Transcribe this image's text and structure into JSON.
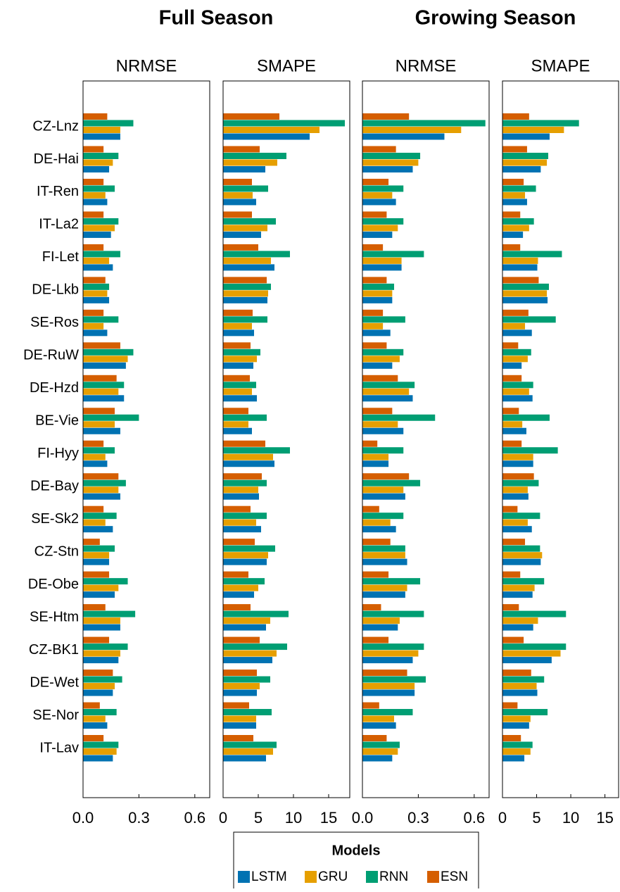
{
  "groups": [
    "Full Season",
    "Growing Season"
  ],
  "categories": [
    "CZ-Lnz",
    "DE-Hai",
    "IT-Ren",
    "IT-La2",
    "FI-Let",
    "DE-Lkb",
    "SE-Ros",
    "DE-RuW",
    "DE-Hzd",
    "BE-Vie",
    "FI-Hyy",
    "DE-Bay",
    "SE-Sk2",
    "CZ-Stn",
    "DE-Obe",
    "SE-Htm",
    "CZ-BK1",
    "DE-Wet",
    "SE-Nor",
    "IT-Lav"
  ],
  "legend": {
    "title": "Models",
    "names": [
      "LSTM",
      "GRU",
      "RNN",
      "ESN"
    ],
    "colors": [
      "#0072b2",
      "#e69f00",
      "#009e73",
      "#d55e00"
    ]
  },
  "chart_data": [
    {
      "type": "bar",
      "orientation": "horizontal",
      "title": "NRMSE",
      "xlim": [
        0,
        0.68
      ],
      "xticks": [
        {
          "value": 0,
          "label": "0.0"
        },
        {
          "value": 0.3,
          "label": "0.3"
        },
        {
          "value": 0.6,
          "label": "0.6"
        }
      ],
      "series": [
        {
          "values": [
            0.2,
            0.14,
            0.13,
            0.15,
            0.16,
            0.14,
            0.13,
            0.23,
            0.22,
            0.2,
            0.13,
            0.2,
            0.16,
            0.14,
            0.17,
            0.2,
            0.19,
            0.16,
            0.13,
            0.16
          ]
        },
        {
          "values": [
            0.2,
            0.16,
            0.12,
            0.17,
            0.14,
            0.13,
            0.11,
            0.24,
            0.19,
            0.17,
            0.12,
            0.19,
            0.12,
            0.14,
            0.19,
            0.2,
            0.2,
            0.17,
            0.12,
            0.18
          ]
        },
        {
          "values": [
            0.27,
            0.19,
            0.17,
            0.19,
            0.2,
            0.14,
            0.19,
            0.27,
            0.22,
            0.3,
            0.17,
            0.23,
            0.18,
            0.17,
            0.24,
            0.28,
            0.24,
            0.21,
            0.18,
            0.19
          ]
        },
        {
          "values": [
            0.13,
            0.11,
            0.11,
            0.11,
            0.11,
            0.12,
            0.11,
            0.2,
            0.18,
            0.17,
            0.11,
            0.19,
            0.11,
            0.09,
            0.14,
            0.12,
            0.14,
            0.16,
            0.09,
            0.11
          ]
        }
      ]
    },
    {
      "type": "bar",
      "orientation": "horizontal",
      "title": "SMAPE",
      "xlim": [
        0,
        18
      ],
      "xticks": [
        0,
        5,
        10,
        15
      ],
      "series": [
        {
          "values": [
            12.3,
            6.0,
            4.7,
            5.4,
            7.3,
            6.3,
            4.4,
            4.3,
            4.8,
            4.1,
            7.3,
            5.1,
            5.4,
            6.2,
            4.4,
            6.1,
            7.0,
            4.8,
            4.7,
            6.1
          ]
        },
        {
          "values": [
            13.7,
            7.7,
            4.2,
            6.3,
            6.8,
            6.4,
            4.1,
            4.8,
            4.1,
            3.6,
            7.1,
            5.0,
            4.7,
            6.4,
            5.0,
            6.7,
            7.6,
            5.2,
            4.7,
            7.1
          ]
        },
        {
          "values": [
            17.3,
            9.0,
            6.4,
            7.5,
            9.5,
            6.8,
            6.3,
            5.3,
            4.7,
            6.2,
            9.5,
            6.2,
            6.2,
            7.4,
            5.9,
            9.3,
            9.1,
            6.7,
            6.9,
            7.6
          ]
        },
        {
          "values": [
            8.0,
            5.2,
            4.1,
            4.1,
            5.0,
            6.2,
            4.2,
            3.9,
            3.8,
            3.6,
            6.0,
            5.5,
            3.9,
            4.5,
            3.6,
            3.9,
            5.2,
            4.8,
            3.7,
            4.3
          ]
        }
      ]
    },
    {
      "type": "bar",
      "orientation": "horizontal",
      "title": "NRMSE",
      "xlim": [
        0,
        0.68
      ],
      "xticks": [
        {
          "value": 0,
          "label": "0.0"
        },
        {
          "value": 0.3,
          "label": "0.3"
        },
        {
          "value": 0.6,
          "label": "0.6"
        }
      ],
      "series": [
        {
          "values": [
            0.44,
            0.27,
            0.18,
            0.16,
            0.21,
            0.16,
            0.15,
            0.16,
            0.27,
            0.22,
            0.14,
            0.23,
            0.18,
            0.24,
            0.23,
            0.19,
            0.27,
            0.28,
            0.18,
            0.16
          ]
        },
        {
          "values": [
            0.53,
            0.3,
            0.16,
            0.19,
            0.21,
            0.16,
            0.11,
            0.2,
            0.25,
            0.19,
            0.14,
            0.22,
            0.15,
            0.23,
            0.24,
            0.2,
            0.3,
            0.28,
            0.17,
            0.19
          ]
        },
        {
          "values": [
            0.66,
            0.31,
            0.22,
            0.22,
            0.33,
            0.17,
            0.23,
            0.22,
            0.28,
            0.39,
            0.22,
            0.31,
            0.22,
            0.23,
            0.31,
            0.33,
            0.33,
            0.34,
            0.27,
            0.2
          ]
        },
        {
          "values": [
            0.25,
            0.18,
            0.14,
            0.13,
            0.11,
            0.13,
            0.11,
            0.13,
            0.19,
            0.16,
            0.08,
            0.25,
            0.09,
            0.15,
            0.14,
            0.1,
            0.14,
            0.24,
            0.09,
            0.13
          ]
        }
      ]
    },
    {
      "type": "bar",
      "orientation": "horizontal",
      "title": "SMAPE",
      "xlim": [
        0,
        17
      ],
      "xticks": [
        0,
        5,
        10,
        15
      ],
      "series": [
        {
          "values": [
            6.9,
            5.6,
            3.6,
            3.0,
            5.1,
            6.6,
            4.3,
            2.8,
            4.4,
            3.5,
            4.5,
            3.8,
            4.3,
            5.6,
            4.4,
            4.5,
            7.2,
            5.1,
            3.9,
            3.2
          ]
        },
        {
          "values": [
            9.0,
            6.5,
            3.3,
            3.9,
            5.2,
            6.5,
            3.3,
            3.7,
            3.9,
            2.9,
            4.5,
            3.7,
            3.7,
            5.8,
            4.7,
            5.2,
            8.5,
            5.0,
            4.1,
            4.1
          ]
        },
        {
          "values": [
            11.2,
            6.7,
            4.9,
            4.6,
            8.7,
            6.8,
            7.8,
            4.2,
            4.5,
            6.9,
            8.1,
            5.3,
            5.5,
            5.5,
            6.1,
            9.3,
            9.3,
            6.1,
            6.6,
            4.4
          ]
        },
        {
          "values": [
            3.9,
            3.6,
            3.1,
            2.6,
            2.6,
            5.3,
            3.8,
            2.3,
            2.8,
            2.4,
            2.8,
            4.6,
            2.2,
            3.3,
            2.6,
            2.4,
            3.1,
            4.2,
            2.2,
            2.7
          ]
        }
      ]
    }
  ]
}
